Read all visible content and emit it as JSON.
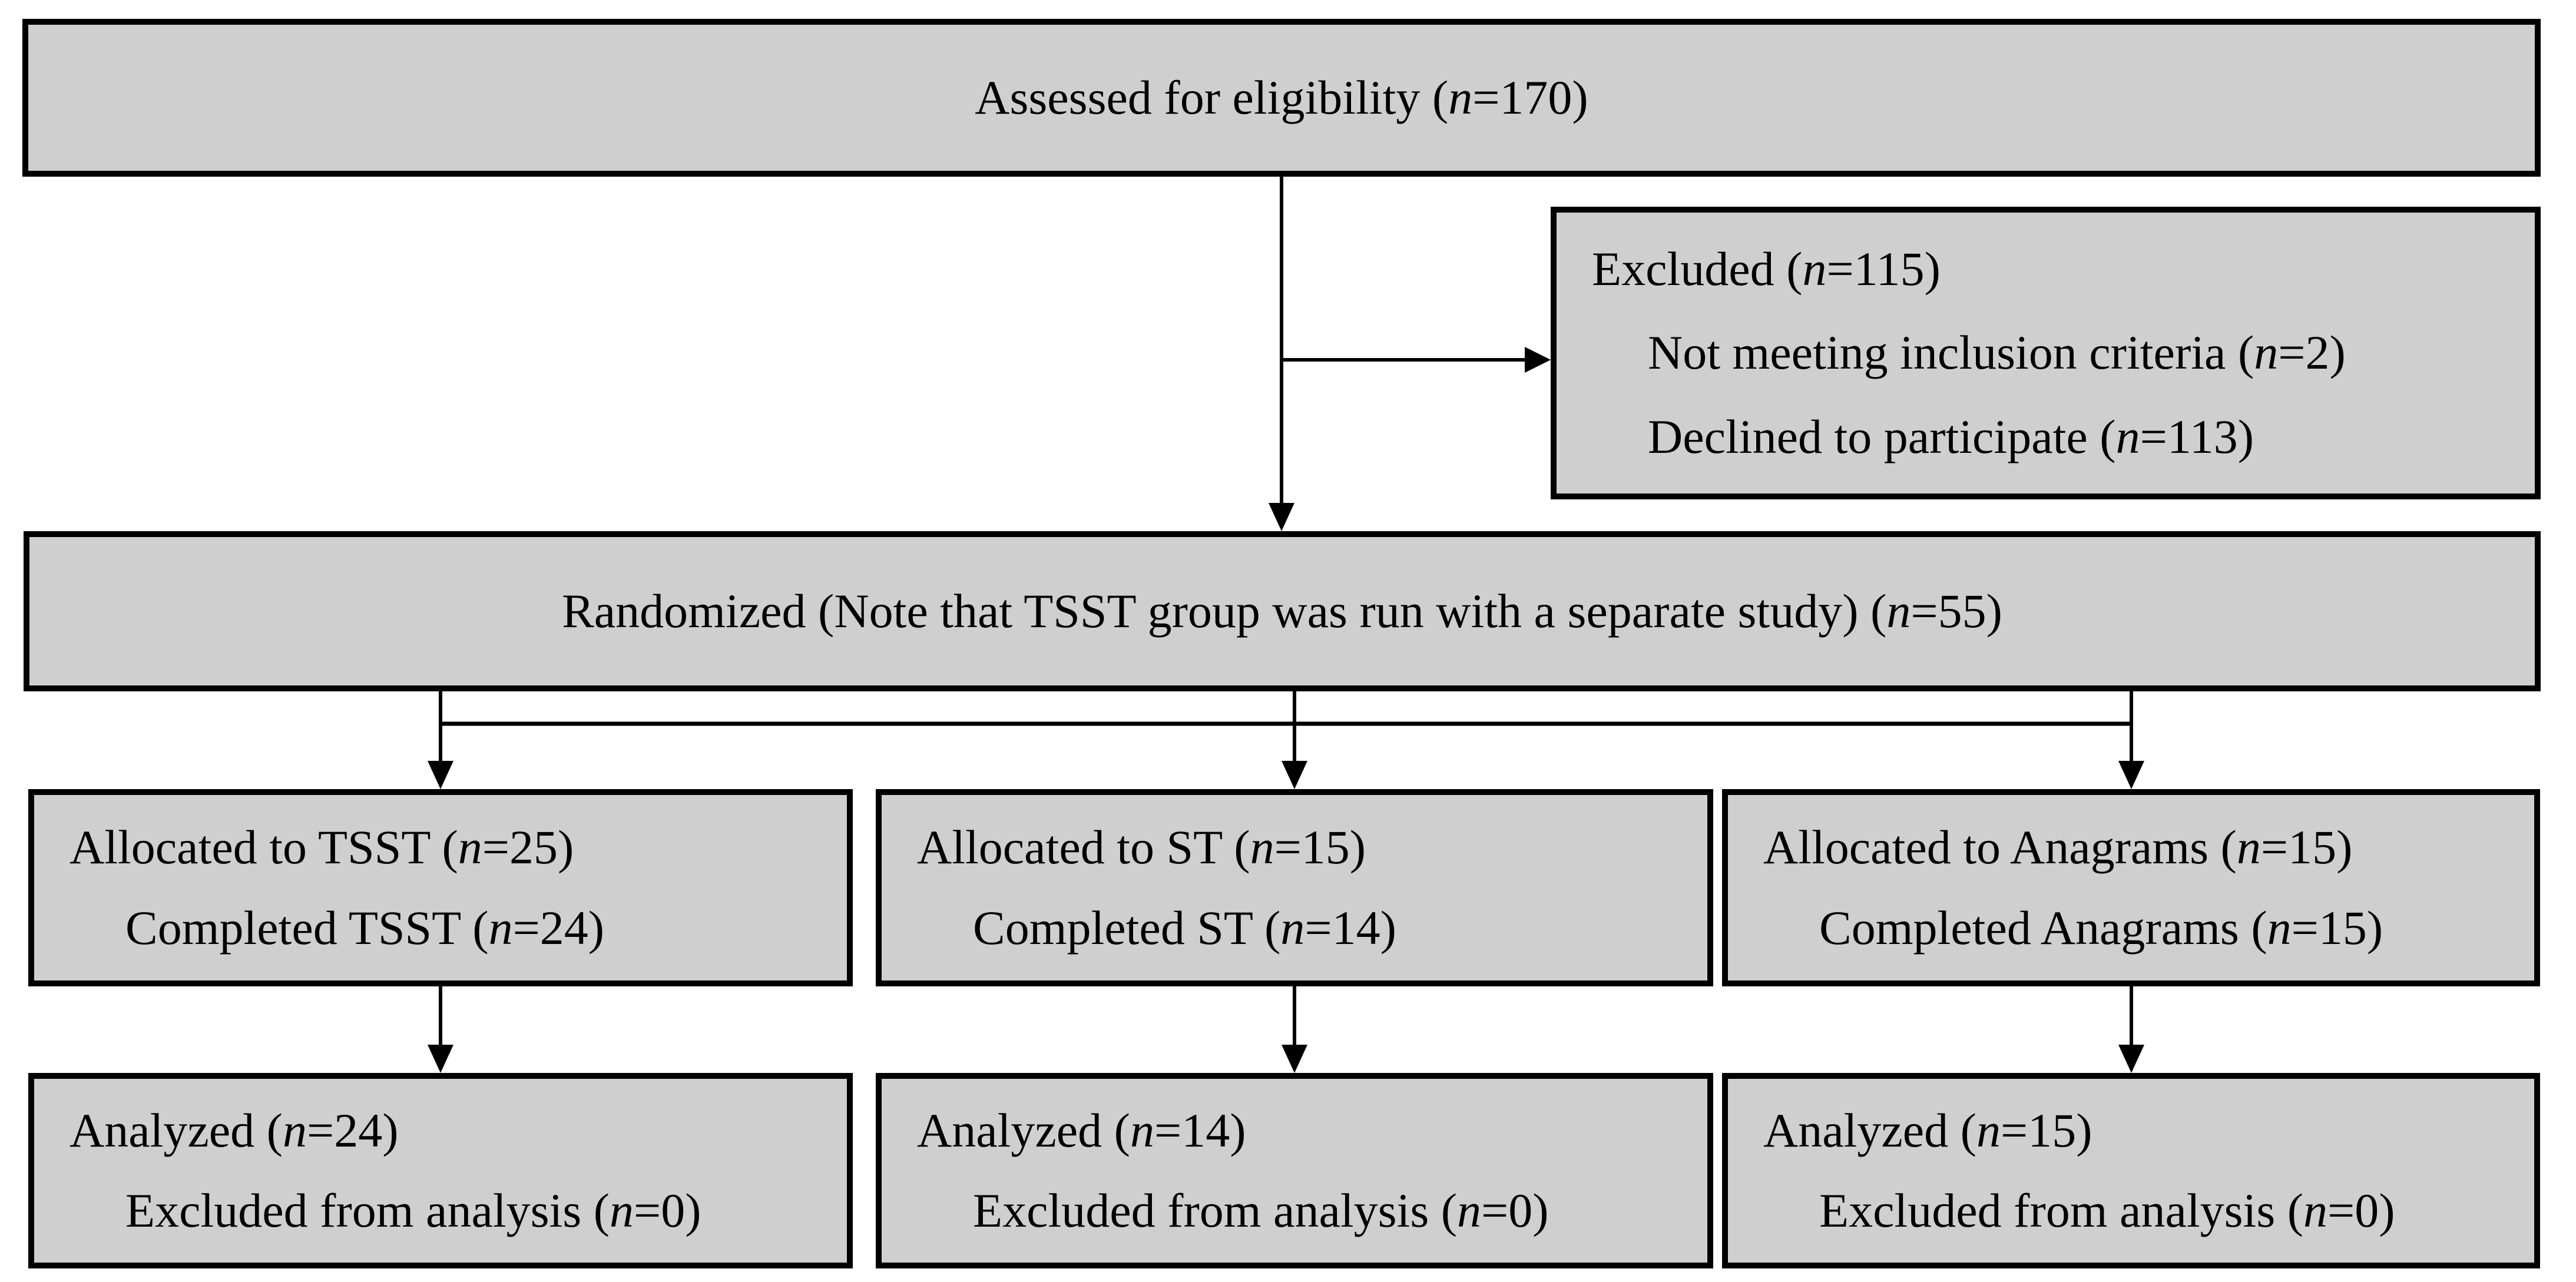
{
  "diagram": {
    "type": "consort-participant-flow",
    "colors": {
      "background": "#ffffff",
      "box_fill": "#cfcfcf",
      "box_border": "#000000",
      "connector": "#000000"
    },
    "boxes": {
      "assessed": {
        "lines": [
          {
            "segs": [
              {
                "t": "Assessed for eligibility ("
              },
              {
                "t": "n",
                "i": true
              },
              {
                "t": "=170)"
              }
            ]
          }
        ]
      },
      "excluded": {
        "lines": [
          {
            "segs": [
              {
                "t": "Excluded ("
              },
              {
                "t": "n",
                "i": true
              },
              {
                "t": "=115)"
              }
            ]
          },
          {
            "segs": [
              {
                "t": "Not meeting inclusion criteria ("
              },
              {
                "t": "n",
                "i": true
              },
              {
                "t": "=2)"
              }
            ]
          },
          {
            "segs": [
              {
                "t": "Declined to participate ("
              },
              {
                "t": "n",
                "i": true
              },
              {
                "t": "=113)"
              }
            ]
          }
        ]
      },
      "randomized": {
        "lines": [
          {
            "segs": [
              {
                "t": "Randomized (Note that TSST group was run with a separate study) ("
              },
              {
                "t": "n",
                "i": true
              },
              {
                "t": "=55)"
              }
            ]
          }
        ]
      },
      "allocated_tsst": {
        "lines": [
          {
            "segs": [
              {
                "t": "Allocated to TSST ("
              },
              {
                "t": "n",
                "i": true
              },
              {
                "t": "=25)"
              }
            ]
          },
          {
            "segs": [
              {
                "t": "Completed TSST ("
              },
              {
                "t": "n",
                "i": true
              },
              {
                "t": "=24)"
              }
            ]
          }
        ]
      },
      "allocated_st": {
        "lines": [
          {
            "segs": [
              {
                "t": "Allocated to ST ("
              },
              {
                "t": "n",
                "i": true
              },
              {
                "t": "=15)"
              }
            ]
          },
          {
            "segs": [
              {
                "t": "Completed ST ("
              },
              {
                "t": "n",
                "i": true
              },
              {
                "t": "=14)"
              }
            ]
          }
        ]
      },
      "allocated_anagrams": {
        "lines": [
          {
            "segs": [
              {
                "t": "Allocated to Anagrams ("
              },
              {
                "t": "n",
                "i": true
              },
              {
                "t": "=15)"
              }
            ]
          },
          {
            "segs": [
              {
                "t": "Completed Anagrams ("
              },
              {
                "t": "n",
                "i": true
              },
              {
                "t": "=15)"
              }
            ]
          }
        ]
      },
      "analyzed_tsst": {
        "lines": [
          {
            "segs": [
              {
                "t": "Analyzed ("
              },
              {
                "t": "n",
                "i": true
              },
              {
                "t": "=24)"
              }
            ]
          },
          {
            "segs": [
              {
                "t": "Excluded from analysis ("
              },
              {
                "t": "n",
                "i": true
              },
              {
                "t": "=0)"
              }
            ]
          }
        ]
      },
      "analyzed_st": {
        "lines": [
          {
            "segs": [
              {
                "t": "Analyzed ("
              },
              {
                "t": "n",
                "i": true
              },
              {
                "t": "=14)"
              }
            ]
          },
          {
            "segs": [
              {
                "t": "Excluded from analysis ("
              },
              {
                "t": "n",
                "i": true
              },
              {
                "t": "=0)"
              }
            ]
          }
        ]
      },
      "analyzed_anagrams": {
        "lines": [
          {
            "segs": [
              {
                "t": "Analyzed ("
              },
              {
                "t": "n",
                "i": true
              },
              {
                "t": "=15)"
              }
            ]
          },
          {
            "segs": [
              {
                "t": "Excluded from analysis ("
              },
              {
                "t": "n",
                "i": true
              },
              {
                "t": "=0)"
              }
            ]
          }
        ]
      }
    }
  }
}
